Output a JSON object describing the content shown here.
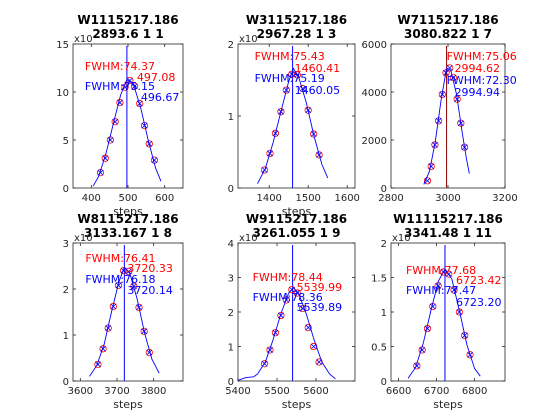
{
  "chart_data": [
    {
      "type": "line",
      "title": [
        "W1115217.186",
        "2893.6 1 1"
      ],
      "xlabel": "steps",
      "xlim": [
        350,
        650
      ],
      "xticks": [
        400,
        500,
        600
      ],
      "ylim": [
        0,
        15
      ],
      "yticks": [
        0,
        5,
        10,
        15
      ],
      "y_exponent": "x10",
      "annotations": [
        {
          "text": "FWHM:74.37",
          "color": "#ff0000"
        },
        {
          "text": "497.08",
          "color": "#ff0000"
        },
        {
          "text": "FWHM:75.15",
          "color": "#0000ff"
        },
        {
          "text": "496.67",
          "color": "#0000ff"
        }
      ],
      "peak_line_x": 497,
      "series": [
        {
          "style": "red-circles",
          "x": [
            425,
            438,
            452,
            465,
            478,
            492,
            505,
            518,
            532,
            545,
            558,
            572
          ],
          "y": [
            1.6,
            3.1,
            5.0,
            6.9,
            8.9,
            10.5,
            11.2,
            10.6,
            8.8,
            6.5,
            4.6,
            2.9
          ]
        },
        {
          "style": "blue-crosses",
          "x": [
            425,
            438,
            452,
            465,
            478,
            492,
            505,
            518,
            532,
            545,
            558,
            572
          ],
          "y": [
            1.6,
            3.1,
            5.0,
            6.9,
            8.9,
            10.5,
            11.2,
            10.6,
            8.8,
            6.5,
            4.6,
            2.9
          ]
        },
        {
          "style": "blue-line",
          "x": [
            405,
            420,
            440,
            460,
            480,
            497,
            515,
            535,
            555,
            575,
            590
          ],
          "y": [
            0.2,
            1.2,
            3.6,
            6.7,
            9.7,
            11.3,
            10.8,
            8.3,
            5.0,
            2.1,
            0.7
          ]
        }
      ]
    },
    {
      "type": "line",
      "title": [
        "W3115217.186",
        "2967.28 1 3"
      ],
      "xlabel": "steps",
      "xlim": [
        1320,
        1620
      ],
      "xticks": [
        1400,
        1500,
        1600
      ],
      "ylim": [
        0,
        2
      ],
      "yticks": [
        0,
        1,
        2
      ],
      "y_exponent": "x10",
      "annotations": [
        {
          "text": "FWHM:75.43",
          "color": "#ff0000"
        },
        {
          "text": "1460.41",
          "color": "#ff0000"
        },
        {
          "text": "FWHM:75.19",
          "color": "#0000ff"
        },
        {
          "text": "1460.05",
          "color": "#0000ff"
        }
      ],
      "peak_line_x": 1460,
      "series": [
        {
          "style": "red-circles",
          "x": [
            1388,
            1402,
            1416,
            1430,
            1444,
            1458,
            1472,
            1486,
            1500,
            1514,
            1528
          ],
          "y": [
            0.25,
            0.48,
            0.76,
            1.06,
            1.36,
            1.58,
            1.57,
            1.38,
            1.08,
            0.75,
            0.46
          ]
        },
        {
          "style": "blue-crosses",
          "x": [
            1388,
            1402,
            1416,
            1430,
            1444,
            1458,
            1472,
            1486,
            1500,
            1514,
            1528
          ],
          "y": [
            0.25,
            0.48,
            0.76,
            1.06,
            1.36,
            1.58,
            1.57,
            1.38,
            1.08,
            0.75,
            0.46
          ]
        },
        {
          "style": "blue-line",
          "x": [
            1370,
            1390,
            1410,
            1430,
            1450,
            1462,
            1475,
            1495,
            1515,
            1535,
            1550
          ],
          "y": [
            0.06,
            0.27,
            0.63,
            1.06,
            1.48,
            1.66,
            1.55,
            1.19,
            0.72,
            0.33,
            0.14
          ]
        }
      ]
    },
    {
      "type": "line",
      "title": [
        "W7115217.186",
        "3080.822 1 7"
      ],
      "xlabel": "",
      "xlim": [
        2800,
        3200
      ],
      "xticks": [
        2800,
        3000,
        3200
      ],
      "ylim": [
        0,
        6000
      ],
      "yticks": [
        0,
        2000,
        4000,
        6000
      ],
      "y_exponent": "",
      "annotations": [
        {
          "text": "FWHM:75.06",
          "color": "#ff0000"
        },
        {
          "text": "2994.62",
          "color": "#ff0000"
        },
        {
          "text": "FWHM:72.30",
          "color": "#0000ff"
        },
        {
          "text": "2994.94",
          "color": "#0000ff"
        }
      ],
      "peak_line_x": 2995,
      "series": [
        {
          "style": "red-circles",
          "x": [
            2928,
            2941,
            2954,
            2967,
            2980,
            2993,
            3006,
            3019,
            3032,
            3045,
            3058
          ],
          "y": [
            300,
            900,
            1800,
            2800,
            3900,
            4800,
            5000,
            4600,
            3700,
            2700,
            1700
          ]
        },
        {
          "style": "blue-crosses",
          "x": [
            2928,
            2941,
            2954,
            2967,
            2980,
            2993,
            3006,
            3019,
            3032,
            3045,
            3058
          ],
          "y": [
            300,
            900,
            1800,
            2800,
            3900,
            4800,
            5000,
            4600,
            3700,
            2700,
            1700
          ]
        },
        {
          "style": "blue-line",
          "x": [
            2915,
            2935,
            2955,
            2975,
            2995,
            3010,
            3030,
            3050,
            3065,
            3075
          ],
          "y": [
            150,
            700,
            1900,
            3600,
            5000,
            4900,
            3900,
            2300,
            1200,
            600
          ]
        }
      ]
    },
    {
      "type": "line",
      "title": [
        "W8115217.186",
        "3133.167 1 8"
      ],
      "xlabel": "steps",
      "xlim": [
        3580,
        3880
      ],
      "xticks": [
        3600,
        3700,
        3800
      ],
      "ylim": [
        0,
        3
      ],
      "yticks": [
        0,
        1,
        2,
        3
      ],
      "y_exponent": "x10",
      "annotations": [
        {
          "text": "FWHM:76.41",
          "color": "#ff0000"
        },
        {
          "text": "3720.33",
          "color": "#ff0000"
        },
        {
          "text": "FWHM:76.18",
          "color": "#0000ff"
        },
        {
          "text": "3720.14",
          "color": "#0000ff"
        }
      ],
      "peak_line_x": 3720,
      "series": [
        {
          "style": "red-circles",
          "x": [
            3648,
            3662,
            3676,
            3690,
            3704,
            3718,
            3732,
            3746,
            3760,
            3774,
            3788
          ],
          "y": [
            0.36,
            0.7,
            1.15,
            1.62,
            2.08,
            2.4,
            2.38,
            2.06,
            1.6,
            1.08,
            0.62
          ]
        },
        {
          "style": "blue-crosses",
          "x": [
            3648,
            3662,
            3676,
            3690,
            3704,
            3718,
            3732,
            3746,
            3760,
            3774,
            3788
          ],
          "y": [
            0.36,
            0.7,
            1.15,
            1.62,
            2.08,
            2.4,
            2.38,
            2.06,
            1.6,
            1.08,
            0.62
          ]
        },
        {
          "style": "blue-line",
          "x": [
            3625,
            3645,
            3665,
            3685,
            3705,
            3720,
            3735,
            3755,
            3775,
            3795,
            3815
          ],
          "y": [
            0.1,
            0.34,
            0.8,
            1.5,
            2.15,
            2.47,
            2.34,
            1.78,
            1.05,
            0.48,
            0.17
          ]
        }
      ]
    },
    {
      "type": "line",
      "title": [
        "W9115217.186",
        "3261.055 1 9"
      ],
      "xlabel": "steps",
      "xlim": [
        5400,
        5700
      ],
      "xticks": [
        5400,
        5500,
        5600
      ],
      "ylim": [
        0,
        4
      ],
      "yticks": [
        0,
        1,
        2,
        3,
        4
      ],
      "y_exponent": "x10",
      "annotations": [
        {
          "text": "FWHM:78.44",
          "color": "#ff0000"
        },
        {
          "text": "5539.99",
          "color": "#ff0000"
        },
        {
          "text": "FWHM:78.36",
          "color": "#0000ff"
        },
        {
          "text": "5539.89",
          "color": "#0000ff"
        }
      ],
      "peak_line_x": 5540,
      "series": [
        {
          "style": "red-circles",
          "x": [
            5468,
            5482,
            5496,
            5510,
            5524,
            5538,
            5552,
            5566,
            5580,
            5594,
            5608
          ],
          "y": [
            0.5,
            0.9,
            1.4,
            1.9,
            2.35,
            2.65,
            2.55,
            2.1,
            1.55,
            1.0,
            0.55
          ]
        },
        {
          "style": "blue-crosses",
          "x": [
            5468,
            5482,
            5496,
            5510,
            5524,
            5538,
            5552,
            5566,
            5580,
            5594,
            5608
          ],
          "y": [
            0.5,
            0.9,
            1.4,
            1.9,
            2.35,
            2.65,
            2.55,
            2.1,
            1.55,
            1.0,
            0.55
          ]
        },
        {
          "style": "blue-line",
          "x": [
            5400,
            5420,
            5440,
            5450,
            5470,
            5490,
            5510,
            5530,
            5542,
            5555,
            5575,
            5595,
            5615,
            5635,
            5650
          ],
          "y": [
            0.02,
            0.1,
            0.12,
            0.2,
            0.55,
            1.2,
            1.95,
            2.55,
            2.7,
            2.55,
            1.95,
            1.2,
            0.55,
            0.2,
            0.06
          ]
        }
      ]
    },
    {
      "type": "line",
      "title": [
        "W11115217.186",
        "3341.48 1 11"
      ],
      "xlabel": "steps",
      "xlim": [
        6580,
        6880
      ],
      "xticks": [
        6600,
        6700,
        6800
      ],
      "ylim": [
        0,
        2
      ],
      "yticks": [
        0,
        0.5,
        1,
        1.5,
        2
      ],
      "y_exponent": "x10",
      "annotations": [
        {
          "text": "FWHM:77.68",
          "color": "#ff0000"
        },
        {
          "text": "6723.42",
          "color": "#ff0000"
        },
        {
          "text": "FWHM:77.47",
          "color": "#0000ff"
        },
        {
          "text": "6723.20",
          "color": "#0000ff"
        }
      ],
      "peak_line_x": 6722,
      "series": [
        {
          "style": "red-circles",
          "x": [
            6648,
            6662,
            6676,
            6690,
            6704,
            6718,
            6732,
            6746,
            6760,
            6774,
            6788
          ],
          "y": [
            0.22,
            0.45,
            0.76,
            1.08,
            1.38,
            1.58,
            1.55,
            1.32,
            1.0,
            0.66,
            0.38
          ]
        },
        {
          "style": "blue-crosses",
          "x": [
            6648,
            6662,
            6676,
            6690,
            6704,
            6718,
            6732,
            6746,
            6760,
            6774,
            6788
          ],
          "y": [
            0.22,
            0.45,
            0.76,
            1.08,
            1.38,
            1.58,
            1.55,
            1.32,
            1.0,
            0.66,
            0.38
          ]
        },
        {
          "style": "blue-line",
          "x": [
            6625,
            6645,
            6665,
            6685,
            6705,
            6722,
            6740,
            6760,
            6780,
            6800,
            6815
          ],
          "y": [
            0.04,
            0.2,
            0.55,
            1.02,
            1.45,
            1.62,
            1.48,
            1.02,
            0.52,
            0.18,
            0.07
          ]
        }
      ]
    }
  ]
}
